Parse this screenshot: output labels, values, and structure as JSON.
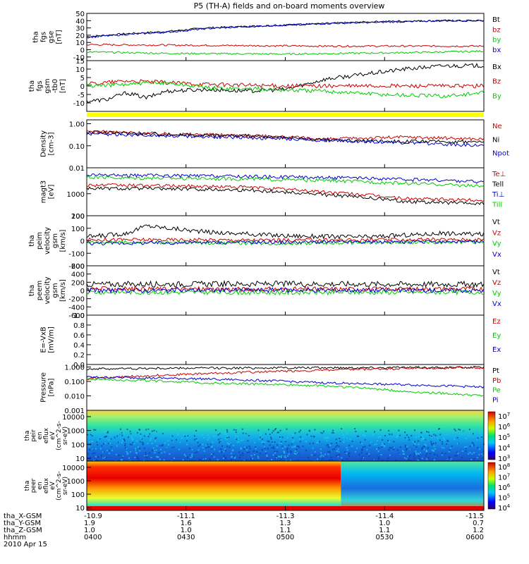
{
  "title": "P5 (TH-A) fields and on-board moments overview",
  "chart_data": {
    "type": "line",
    "title": "P5 (TH-A) fields and on-board moments overview",
    "time_axis": [
      "0400",
      "0430",
      "0500",
      "0530",
      "0600"
    ],
    "date": "2010 Apr 15",
    "orbit_rows": [
      {
        "label": "tha_X-GSM",
        "values": [
          "-10.9",
          "-11.1",
          "-11.3",
          "-11.4",
          "-11.5"
        ]
      },
      {
        "label": "tha_Y-GSM",
        "values": [
          "1.9",
          "1.6",
          "1.3",
          "1.0",
          "0.7"
        ]
      },
      {
        "label": "tha_Z-GSM",
        "values": [
          "1.0",
          "1.0",
          "1.1",
          "1.1",
          "1.2"
        ]
      },
      {
        "label": "hhmm",
        "values": [
          "0400",
          "0430",
          "0500",
          "0530",
          "0600"
        ]
      }
    ],
    "panels": [
      {
        "id": "fgs_gse",
        "ylabel": [
          "tha",
          "fgs",
          "gse",
          "[nT]"
        ],
        "ylim": [
          -15,
          50
        ],
        "ticks": [
          "50",
          "40",
          "30",
          "20",
          "10",
          "0",
          "-10"
        ],
        "series": [
          {
            "name": "Bt",
            "color": "#000000",
            "t": [
              0,
              0.1,
              0.2,
              0.3,
              0.45,
              0.6,
              0.75,
              0.9,
              1.0
            ],
            "y": [
              18,
              22,
              25,
              30,
              33,
              36,
              39,
              40,
              40
            ]
          },
          {
            "name": "bz",
            "color": "#cc0000",
            "t": [
              0,
              0.3,
              0.6,
              1.0
            ],
            "y": [
              7,
              6,
              5,
              5
            ]
          },
          {
            "name": "by",
            "color": "#00cc00",
            "t": [
              0,
              0.2,
              0.5,
              0.8,
              1.0
            ],
            "y": [
              -3,
              -5,
              -6,
              -4,
              -2
            ]
          },
          {
            "name": "bx",
            "color": "#0000cc",
            "t": [
              0,
              0.1,
              0.2,
              0.3,
              0.45,
              0.6,
              0.75,
              0.9,
              1.0
            ],
            "y": [
              17,
              21,
              24,
              29,
              33,
              36,
              38,
              40,
              40
            ]
          }
        ]
      },
      {
        "id": "fgs_gsm_hp",
        "ylabel": [
          "tha",
          "fgs",
          "gsm",
          "-tb0",
          "[nT]"
        ],
        "ylim": [
          -15,
          15
        ],
        "ticks": [
          "15",
          "10",
          "5",
          "0",
          "-5",
          "-10"
        ],
        "series": [
          {
            "name": "Bx",
            "color": "#000000",
            "t": [
              0,
              0.05,
              0.1,
              0.15,
              0.2,
              0.3,
              0.4,
              0.5,
              0.6,
              0.7,
              0.8,
              0.9,
              1.0
            ],
            "y": [
              -9,
              -8,
              -4,
              -7,
              -3,
              -2,
              -3,
              -2,
              4,
              7,
              10,
              12,
              12
            ]
          },
          {
            "name": "Bz",
            "color": "#cc0000",
            "t": [
              0,
              0.1,
              0.2,
              0.3,
              0.5,
              0.7,
              1.0
            ],
            "y": [
              1,
              3,
              2,
              1,
              0,
              0,
              0
            ]
          },
          {
            "name": "By",
            "color": "#00cc00",
            "t": [
              0,
              0.1,
              0.2,
              0.3,
              0.45,
              0.6,
              0.75,
              0.9,
              1.0
            ],
            "y": [
              0,
              1,
              2,
              -1,
              -2,
              -3,
              -5,
              -6,
              -4
            ]
          }
        ]
      },
      {
        "id": "density",
        "ylabel": [
          "Density",
          "[cm-3]"
        ],
        "scale": "log",
        "ylim": [
          0.01,
          1.5
        ],
        "ticks": [
          "1.00",
          "0.10",
          "0.01"
        ],
        "series": [
          {
            "name": "Ne",
            "color": "#cc0000",
            "t": [
              0,
              0.2,
              0.4,
              0.6,
              0.8,
              1.0
            ],
            "y": [
              0.45,
              0.35,
              0.3,
              0.2,
              0.25,
              0.2
            ]
          },
          {
            "name": "Ni",
            "color": "#000000",
            "t": [
              0,
              0.2,
              0.4,
              0.6,
              0.8,
              1.0
            ],
            "y": [
              0.42,
              0.33,
              0.28,
              0.18,
              0.16,
              0.15
            ]
          },
          {
            "name": "Npot",
            "color": "#0000cc",
            "t": [
              0,
              0.3,
              0.6,
              1.0
            ],
            "y": [
              0.35,
              0.26,
              0.18,
              0.1
            ]
          }
        ]
      },
      {
        "id": "temperature",
        "ylabel": [
          "magt3",
          "[eV]"
        ],
        "scale": "log",
        "ylim": [
          100,
          15000
        ],
        "ticks": [
          "1000",
          "100"
        ],
        "series": [
          {
            "name": "Te⊥",
            "color": "#cc0000",
            "t": [
              0,
              0.2,
              0.4,
              0.6,
              0.8,
              1.0
            ],
            "y": [
              2500,
              2300,
              2000,
              1200,
              600,
              500
            ]
          },
          {
            "name": "Tell",
            "color": "#000000",
            "t": [
              0,
              0.2,
              0.4,
              0.6,
              0.8,
              1.0
            ],
            "y": [
              1800,
              1700,
              1500,
              900,
              450,
              350
            ]
          },
          {
            "name": "Ti⊥",
            "color": "#0000cc",
            "t": [
              0,
              0.3,
              0.6,
              0.8,
              1.0
            ],
            "y": [
              7000,
              6500,
              5500,
              4500,
              3500
            ]
          },
          {
            "name": "Till",
            "color": "#00cc00",
            "t": [
              0,
              0.3,
              0.6,
              0.8,
              1.0
            ],
            "y": [
              5500,
              5000,
              4000,
              3000,
              2200
            ]
          }
        ]
      },
      {
        "id": "peim_velocity",
        "ylabel": [
          "tha",
          "peim",
          "velocity",
          "gsm",
          "[km/s]"
        ],
        "ylim": [
          -200,
          200
        ],
        "ticks": [
          "200",
          "100",
          "0",
          "-100",
          "-200"
        ],
        "series": [
          {
            "name": "Vt",
            "color": "#000000",
            "t": [
              0,
              0.1,
              0.15,
              0.3,
              0.5,
              0.7,
              0.9,
              1.0
            ],
            "y": [
              30,
              60,
              120,
              70,
              40,
              30,
              60,
              50
            ]
          },
          {
            "name": "Vz",
            "color": "#cc0000",
            "t": [
              0,
              0.5,
              1.0
            ],
            "y": [
              10,
              5,
              10
            ]
          },
          {
            "name": "Vy",
            "color": "#00cc00",
            "t": [
              0,
              0.5,
              1.0
            ],
            "y": [
              -10,
              -20,
              -10
            ]
          },
          {
            "name": "Vx",
            "color": "#0000cc",
            "t": [
              0,
              0.5,
              1.0
            ],
            "y": [
              -20,
              -10,
              -10
            ]
          }
        ]
      },
      {
        "id": "peem_velocity",
        "ylabel": [
          "tha",
          "peem",
          "velocity",
          "gsm",
          "[km/s]"
        ],
        "ylim": [
          -600,
          600
        ],
        "ticks": [
          "600",
          "400",
          "200",
          "0",
          "-200",
          "-400",
          "-600"
        ],
        "series": [
          {
            "name": "Vt",
            "color": "#000000",
            "t": [
              0,
              0.5,
              1.0
            ],
            "y": [
              150,
              160,
              150
            ]
          },
          {
            "name": "Vz",
            "color": "#cc0000",
            "t": [
              0,
              0.5,
              1.0
            ],
            "y": [
              40,
              30,
              40
            ]
          },
          {
            "name": "Vy",
            "color": "#00cc00",
            "t": [
              0,
              0.5,
              1.0
            ],
            "y": [
              -40,
              -50,
              -40
            ]
          },
          {
            "name": "Vx",
            "color": "#0000cc",
            "t": [
              0,
              0.5,
              1.0
            ],
            "y": [
              0,
              10,
              0
            ]
          }
        ]
      },
      {
        "id": "efield",
        "ylabel": [
          "E=-VxB",
          "[mV/m]"
        ],
        "ylim": [
          0,
          1
        ],
        "ticks": [
          "1.0",
          "0.8",
          "0.6",
          "0.4",
          "0.2",
          "0.0"
        ],
        "series": [
          {
            "name": "Ez",
            "color": "#cc0000",
            "t": [],
            "y": []
          },
          {
            "name": "Ey",
            "color": "#00cc00",
            "t": [],
            "y": []
          },
          {
            "name": "Ex",
            "color": "#0000cc",
            "t": [],
            "y": []
          }
        ]
      },
      {
        "id": "pressure",
        "ylabel": [
          "Pressure",
          "[nPa]"
        ],
        "scale": "log",
        "ylim": [
          0.001,
          1.5
        ],
        "ticks": [
          "1.000",
          "0.100",
          "0.010",
          "0.001"
        ],
        "series": [
          {
            "name": "Pt",
            "color": "#000000",
            "t": [
              0,
              0.3,
              0.6,
              1.0
            ],
            "y": [
              0.75,
              0.85,
              0.9,
              0.95
            ]
          },
          {
            "name": "Pb",
            "color": "#cc0000",
            "t": [
              0,
              0.3,
              0.6,
              0.8,
              1.0
            ],
            "y": [
              0.15,
              0.35,
              0.6,
              0.8,
              0.9
            ]
          },
          {
            "name": "Pe",
            "color": "#00cc00",
            "t": [
              0,
              0.3,
              0.6,
              0.8,
              1.0
            ],
            "y": [
              0.15,
              0.08,
              0.05,
              0.02,
              0.01
            ]
          },
          {
            "name": "Pi",
            "color": "#0000cc",
            "t": [
              0,
              0.3,
              0.6,
              0.8,
              1.0
            ],
            "y": [
              0.2,
              0.15,
              0.08,
              0.06,
              0.04
            ]
          }
        ]
      }
    ],
    "spectrograms": [
      {
        "id": "peir_eflux",
        "ylabel": [
          "tha",
          "peir",
          "en",
          "eflux",
          "eV",
          "(cm^2-s-",
          "sr-eV)"
        ],
        "ticks": [
          "10000",
          "1000",
          "100",
          "10"
        ],
        "colorbar_ticks": [
          "10^7",
          "10^6",
          "10^5",
          "10^4",
          "10^3"
        ]
      },
      {
        "id": "peer_eflux",
        "ylabel": [
          "tha",
          "peer",
          "en",
          "eflux",
          "eV",
          "(cm^2-s-",
          "sr-eV)"
        ],
        "ticks": [
          "10000",
          "1000",
          "100",
          "10"
        ],
        "colorbar_ticks": [
          "10^8",
          "10^7",
          "10^6",
          "10^5",
          "10^4"
        ]
      }
    ]
  }
}
